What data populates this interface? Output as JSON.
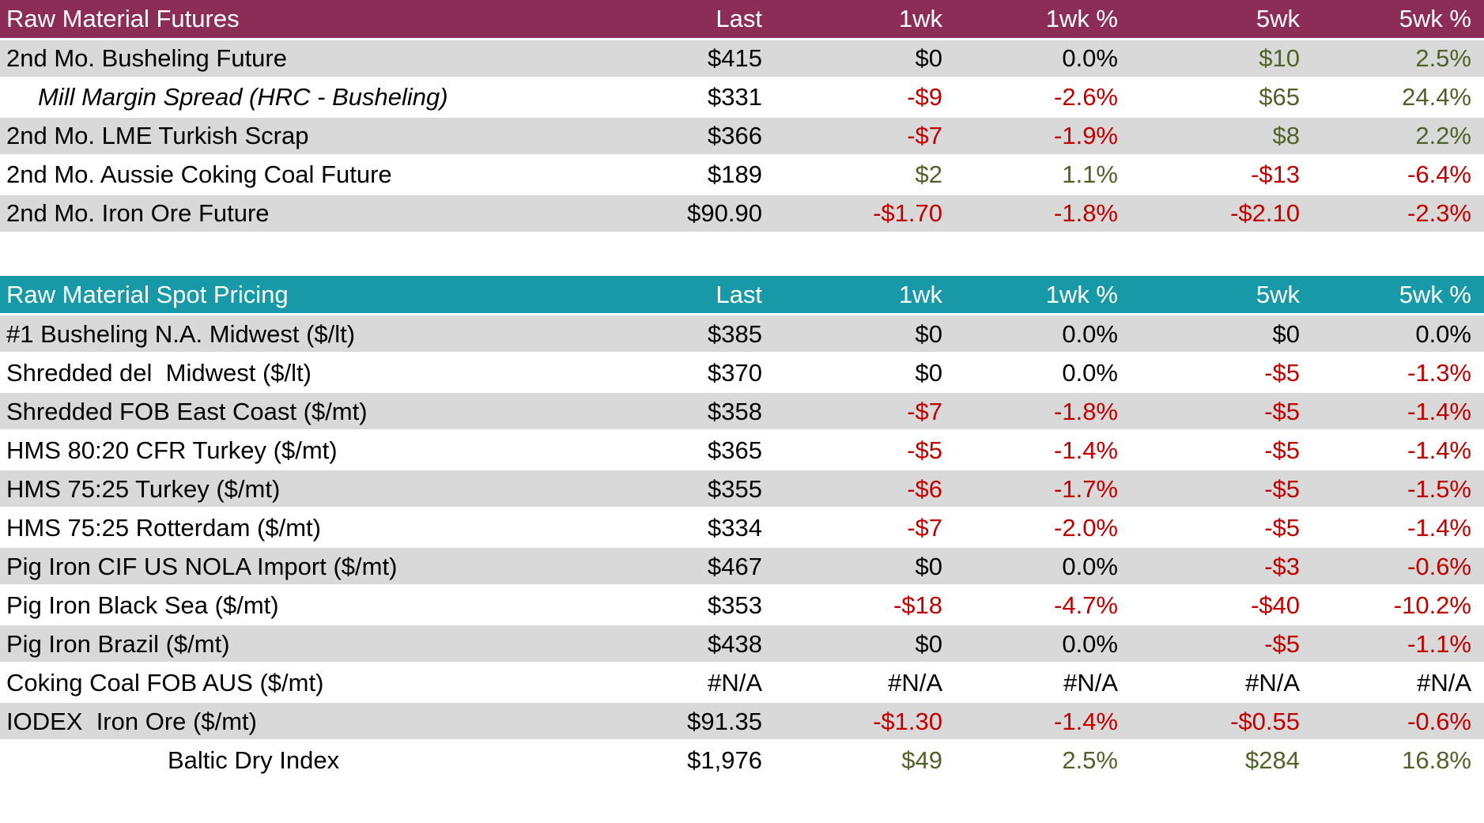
{
  "colors": {
    "header_futures": "#8C2D57",
    "header_spot": "#1899A8",
    "row_alt": "#D9D9D9",
    "text": "#000000",
    "negative": "#C00000",
    "positive": "#4F6228"
  },
  "chart_data": [
    {
      "type": "table",
      "title": "Raw Material Futures",
      "columns": [
        "",
        "Last",
        "1wk",
        "1wk %",
        "5wk",
        "5wk %"
      ],
      "rows": [
        [
          "2nd Mo. Busheling Future",
          "$415",
          "$0",
          "0.0%",
          "$10",
          "2.5%"
        ],
        [
          "Mill Margin Spread (HRC - Busheling)",
          "$331",
          "-$9",
          "-2.6%",
          "$65",
          "24.4%"
        ],
        [
          "2nd Mo. LME Turkish Scrap",
          "$366",
          "-$7",
          "-1.9%",
          "$8",
          "2.2%"
        ],
        [
          "2nd Mo. Aussie Coking Coal Future",
          "$189",
          "$2",
          "1.1%",
          "-$13",
          "-6.4%"
        ],
        [
          "2nd Mo. Iron Ore Future",
          "$90.90",
          "-$1.70",
          "-1.8%",
          "-$2.10",
          "-2.3%"
        ]
      ]
    },
    {
      "type": "table",
      "title": "Raw Material Spot Pricing",
      "columns": [
        "",
        "Last",
        "1wk",
        "1wk %",
        "5wk",
        "5wk %"
      ],
      "rows": [
        [
          "#1 Busheling N.A. Midwest ($/lt)",
          "$385",
          "$0",
          "0.0%",
          "$0",
          "0.0%"
        ],
        [
          "Shredded del  Midwest ($/lt)",
          "$370",
          "$0",
          "0.0%",
          "-$5",
          "-1.3%"
        ],
        [
          "Shredded FOB East Coast ($/mt)",
          "$358",
          "-$7",
          "-1.8%",
          "-$5",
          "-1.4%"
        ],
        [
          "HMS 80:20 CFR Turkey ($/mt)",
          "$365",
          "-$5",
          "-1.4%",
          "-$5",
          "-1.4%"
        ],
        [
          "HMS 75:25 Turkey ($/mt)",
          "$355",
          "-$6",
          "-1.7%",
          "-$5",
          "-1.5%"
        ],
        [
          "HMS 75:25 Rotterdam ($/mt)",
          "$334",
          "-$7",
          "-2.0%",
          "-$5",
          "-1.4%"
        ],
        [
          "Pig Iron CIF US NOLA Import ($/mt)",
          "$467",
          "$0",
          "0.0%",
          "-$3",
          "-0.6%"
        ],
        [
          "Pig Iron Black Sea ($/mt)",
          "$353",
          "-$18",
          "-4.7%",
          "-$40",
          "-10.2%"
        ],
        [
          "Pig Iron Brazil ($/mt)",
          "$438",
          "$0",
          "0.0%",
          "-$5",
          "-1.1%"
        ],
        [
          "Coking Coal FOB AUS ($/mt)",
          "#N/A",
          "#N/A",
          "#N/A",
          "#N/A",
          "#N/A"
        ],
        [
          "IODEX  Iron Ore ($/mt)",
          "$91.35",
          "-$1.30",
          "-1.4%",
          "-$0.55",
          "-0.6%"
        ],
        [
          "Baltic Dry Index",
          "$1,976",
          "$49",
          "2.5%",
          "$284",
          "16.8%"
        ]
      ]
    }
  ],
  "futures_table": {
    "title": "Raw Material Futures",
    "columns": [
      "Last",
      "1wk",
      "1wk %",
      "5wk",
      "5wk %"
    ],
    "rows": [
      {
        "label": "2nd Mo. Busheling Future",
        "style": "",
        "cells": [
          [
            "$415",
            "k"
          ],
          [
            "$0",
            "k"
          ],
          [
            "0.0%",
            "k"
          ],
          [
            "$10",
            "g"
          ],
          [
            "2.5%",
            "g"
          ]
        ]
      },
      {
        "label": "Mill Margin Spread (HRC - Busheling)",
        "style": "italic",
        "cells": [
          [
            "$331",
            "k"
          ],
          [
            "-$9",
            "r"
          ],
          [
            "-2.6%",
            "r"
          ],
          [
            "$65",
            "g"
          ],
          [
            "24.4%",
            "g"
          ]
        ]
      },
      {
        "label": "2nd Mo. LME Turkish Scrap",
        "style": "",
        "cells": [
          [
            "$366",
            "k"
          ],
          [
            "-$7",
            "r"
          ],
          [
            "-1.9%",
            "r"
          ],
          [
            "$8",
            "g"
          ],
          [
            "2.2%",
            "g"
          ]
        ]
      },
      {
        "label": "2nd Mo. Aussie Coking Coal Future",
        "style": "",
        "cells": [
          [
            "$189",
            "k"
          ],
          [
            "$2",
            "g"
          ],
          [
            "1.1%",
            "g"
          ],
          [
            "-$13",
            "r"
          ],
          [
            "-6.4%",
            "r"
          ]
        ]
      },
      {
        "label": "2nd Mo. Iron Ore Future",
        "style": "",
        "cells": [
          [
            "$90.90",
            "k"
          ],
          [
            "-$1.70",
            "r"
          ],
          [
            "-1.8%",
            "r"
          ],
          [
            "-$2.10",
            "r"
          ],
          [
            "-2.3%",
            "r"
          ]
        ]
      }
    ]
  },
  "spot_table": {
    "title": "Raw Material Spot Pricing",
    "columns": [
      "Last",
      "1wk",
      "1wk %",
      "5wk",
      "5wk %"
    ],
    "rows": [
      {
        "label": "#1 Busheling N.A. Midwest ($/lt)",
        "style": "",
        "cells": [
          [
            "$385",
            "k"
          ],
          [
            "$0",
            "k"
          ],
          [
            "0.0%",
            "k"
          ],
          [
            "$0",
            "k"
          ],
          [
            "0.0%",
            "k"
          ]
        ]
      },
      {
        "label": "Shredded del  Midwest ($/lt)",
        "style": "",
        "cells": [
          [
            "$370",
            "k"
          ],
          [
            "$0",
            "k"
          ],
          [
            "0.0%",
            "k"
          ],
          [
            "-$5",
            "r"
          ],
          [
            "-1.3%",
            "r"
          ]
        ]
      },
      {
        "label": "Shredded FOB East Coast ($/mt)",
        "style": "",
        "cells": [
          [
            "$358",
            "k"
          ],
          [
            "-$7",
            "r"
          ],
          [
            "-1.8%",
            "r"
          ],
          [
            "-$5",
            "r"
          ],
          [
            "-1.4%",
            "r"
          ]
        ]
      },
      {
        "label": "HMS 80:20 CFR Turkey ($/mt)",
        "style": "",
        "cells": [
          [
            "$365",
            "k"
          ],
          [
            "-$5",
            "r"
          ],
          [
            "-1.4%",
            "r"
          ],
          [
            "-$5",
            "r"
          ],
          [
            "-1.4%",
            "r"
          ]
        ]
      },
      {
        "label": "HMS 75:25 Turkey ($/mt)",
        "style": "",
        "cells": [
          [
            "$355",
            "k"
          ],
          [
            "-$6",
            "r"
          ],
          [
            "-1.7%",
            "r"
          ],
          [
            "-$5",
            "r"
          ],
          [
            "-1.5%",
            "r"
          ]
        ]
      },
      {
        "label": "HMS 75:25 Rotterdam ($/mt)",
        "style": "",
        "cells": [
          [
            "$334",
            "k"
          ],
          [
            "-$7",
            "r"
          ],
          [
            "-2.0%",
            "r"
          ],
          [
            "-$5",
            "r"
          ],
          [
            "-1.4%",
            "r"
          ]
        ]
      },
      {
        "label": "Pig Iron CIF US NOLA Import ($/mt)",
        "style": "",
        "cells": [
          [
            "$467",
            "k"
          ],
          [
            "$0",
            "k"
          ],
          [
            "0.0%",
            "k"
          ],
          [
            "-$3",
            "r"
          ],
          [
            "-0.6%",
            "r"
          ]
        ]
      },
      {
        "label": "Pig Iron Black Sea ($/mt)",
        "style": "",
        "cells": [
          [
            "$353",
            "k"
          ],
          [
            "-$18",
            "r"
          ],
          [
            "-4.7%",
            "r"
          ],
          [
            "-$40",
            "r"
          ],
          [
            "-10.2%",
            "r"
          ]
        ]
      },
      {
        "label": "Pig Iron Brazil ($/mt)",
        "style": "",
        "cells": [
          [
            "$438",
            "k"
          ],
          [
            "$0",
            "k"
          ],
          [
            "0.0%",
            "k"
          ],
          [
            "-$5",
            "r"
          ],
          [
            "-1.1%",
            "r"
          ]
        ]
      },
      {
        "label": "Coking Coal FOB AUS ($/mt)",
        "style": "",
        "cells": [
          [
            "#N/A",
            "k"
          ],
          [
            "#N/A",
            "k"
          ],
          [
            "#N/A",
            "k"
          ],
          [
            "#N/A",
            "k"
          ],
          [
            "#N/A",
            "k"
          ]
        ]
      },
      {
        "label": "IODEX  Iron Ore ($/mt)",
        "style": "",
        "cells": [
          [
            "$91.35",
            "k"
          ],
          [
            "-$1.30",
            "r"
          ],
          [
            "-1.4%",
            "r"
          ],
          [
            "-$0.55",
            "r"
          ],
          [
            "-0.6%",
            "r"
          ]
        ]
      },
      {
        "label": "Baltic Dry Index",
        "style": "indent",
        "cells": [
          [
            "$1,976",
            "k"
          ],
          [
            "$49",
            "g"
          ],
          [
            "2.5%",
            "g"
          ],
          [
            "$284",
            "g"
          ],
          [
            "16.8%",
            "g"
          ]
        ]
      }
    ]
  }
}
